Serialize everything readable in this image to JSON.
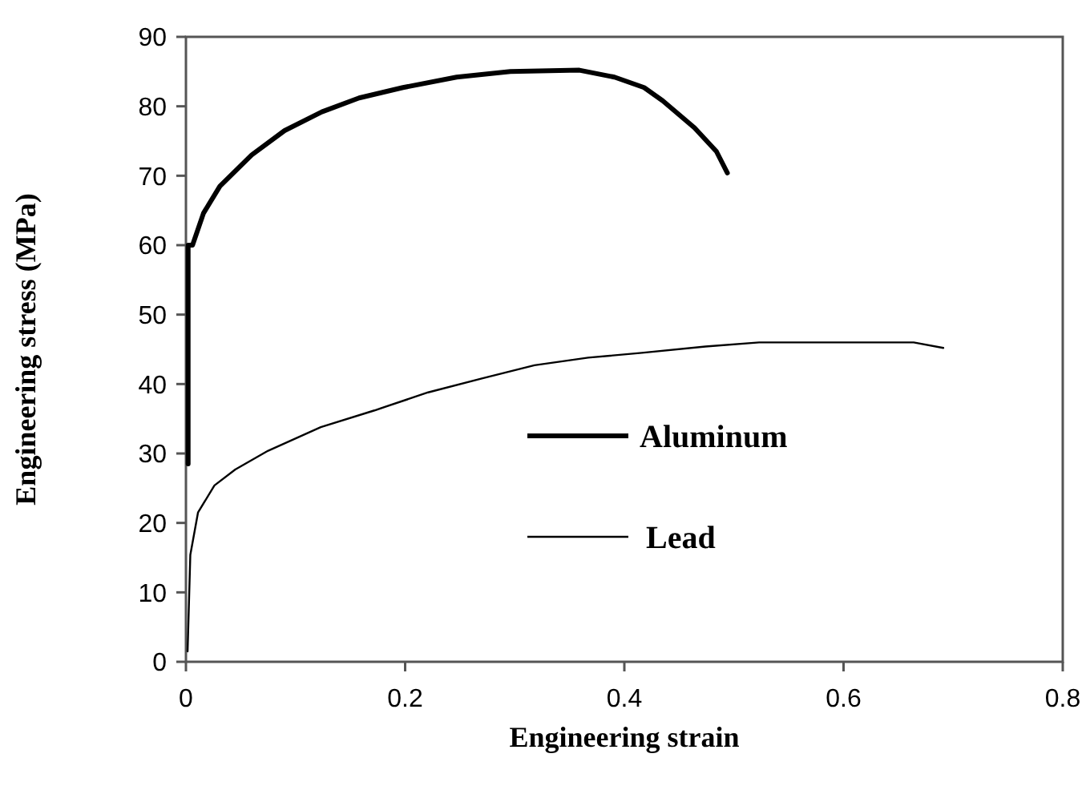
{
  "chart_data": {
    "type": "line",
    "xlabel": "Engineering strain",
    "ylabel": "Engineering stress (MPa)",
    "xlim": [
      0,
      0.8
    ],
    "xticks": [
      0,
      0.2,
      0.4,
      0.6,
      0.8
    ],
    "ylim": [
      0,
      90
    ],
    "yticks": [
      0,
      10,
      20,
      30,
      40,
      50,
      60,
      70,
      80,
      90
    ],
    "grid": false,
    "legend": "right",
    "marker": "none",
    "line_style": "solid",
    "series": [
      {
        "name": "Aluminum",
        "color": "#000000",
        "x": [
          0.002,
          0.002,
          0.006,
          0.016,
          0.031,
          0.06,
          0.09,
          0.124,
          0.158,
          0.198,
          0.247,
          0.296,
          0.359,
          0.391,
          0.418,
          0.435,
          0.464,
          0.484,
          0.494
        ],
        "values": [
          28.5,
          60,
          60,
          64.6,
          68.5,
          73,
          76.5,
          79.2,
          81.2,
          82.7,
          84.2,
          85,
          85.2,
          84.2,
          82.7,
          80.8,
          76.9,
          73.5,
          70.4
        ]
      },
      {
        "name": "Lead",
        "color": "#000000",
        "x": [
          0.0015,
          0.004,
          0.011,
          0.026,
          0.045,
          0.075,
          0.123,
          0.172,
          0.221,
          0.27,
          0.318,
          0.367,
          0.416,
          0.474,
          0.523,
          0.664,
          0.691
        ],
        "values": [
          1.5,
          15.4,
          21.5,
          25.4,
          27.7,
          30.4,
          33.8,
          36.2,
          38.8,
          40.8,
          42.7,
          43.8,
          44.5,
          45.4,
          46,
          46,
          45.2
        ]
      }
    ]
  }
}
